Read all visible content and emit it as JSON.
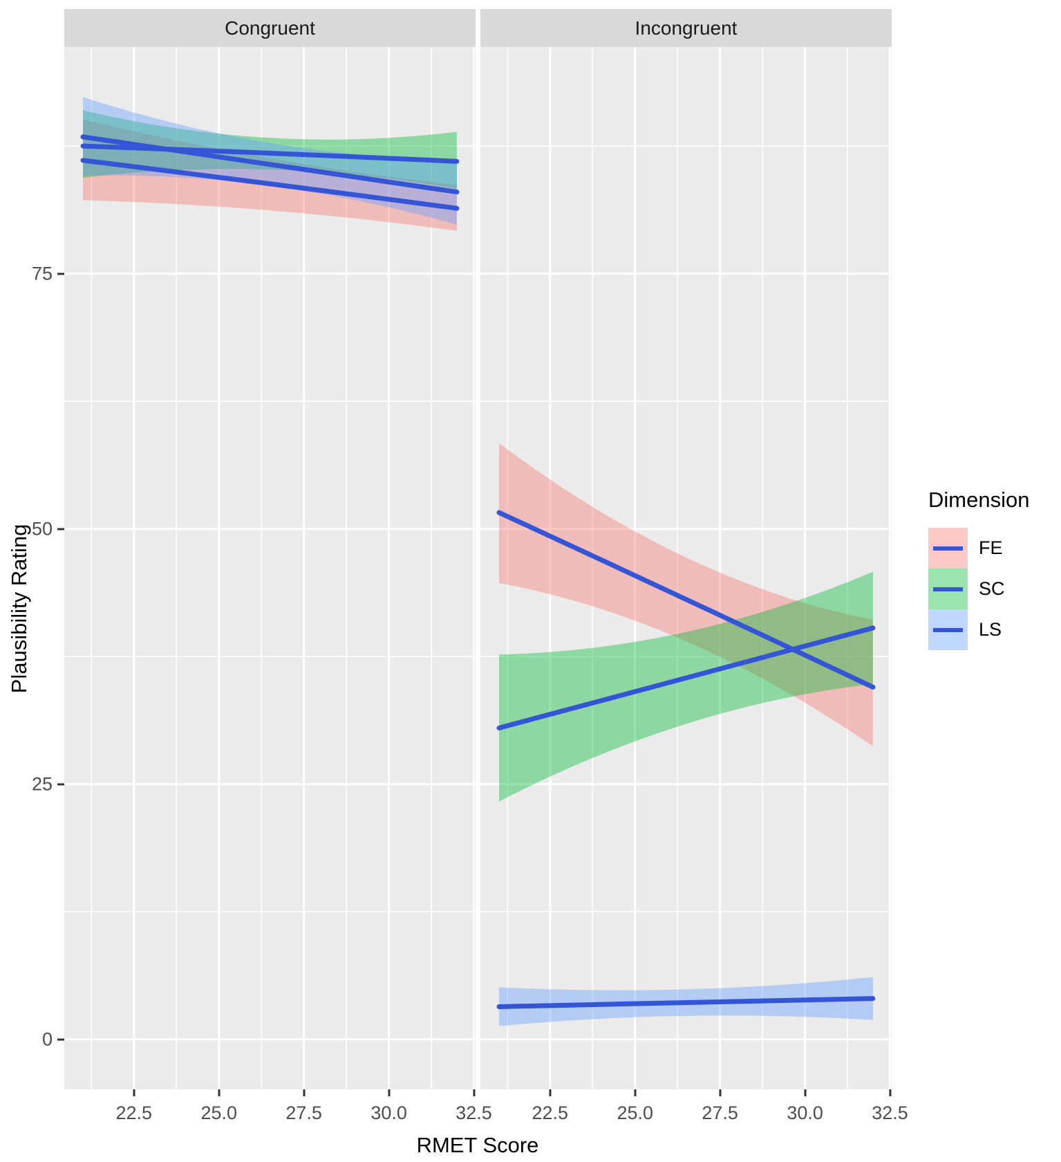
{
  "chart_data": {
    "type": "line",
    "xlabel": "RMET Score",
    "ylabel": "Plausibility Rating",
    "xlim": [
      20.45,
      32.55
    ],
    "ylim": [
      -4.9,
      97.2
    ],
    "x_major_ticks": [
      22.5,
      25.0,
      27.5,
      30.0,
      32.5
    ],
    "x_tick_labels": [
      "22.5",
      "25.0",
      "27.5",
      "30.0",
      "32.5"
    ],
    "x_minor_ticks": [
      21.25,
      23.75,
      26.25,
      28.75,
      31.25
    ],
    "y_major_ticks": [
      0,
      25,
      50,
      75
    ],
    "y_tick_labels": [
      "0",
      "25",
      "50",
      "75"
    ],
    "y_minor_ticks": [
      12.5,
      37.5,
      62.5,
      87.5
    ],
    "facets": [
      {
        "label": "Congruent",
        "series": [
          {
            "name": "FE",
            "x": [
              21,
              26.5,
              32
            ],
            "line": [
              86.1,
              83.8,
              81.4
            ],
            "upper": [
              90.1,
              86.3,
              83.7
            ],
            "lower": [
              82.2,
              81.2,
              79.2
            ]
          },
          {
            "name": "SC",
            "x": [
              21,
              26.5,
              32
            ],
            "line": [
              87.5,
              86.8,
              86.0
            ],
            "upper": [
              91.0,
              88.3,
              88.9
            ],
            "lower": [
              84.4,
              85.2,
              83.3
            ]
          },
          {
            "name": "LS",
            "x": [
              21,
              26.5,
              32
            ],
            "line": [
              88.4,
              85.7,
              83.0
            ],
            "upper": [
              92.3,
              87.8,
              86.2
            ],
            "lower": [
              84.6,
              83.6,
              79.8
            ]
          }
        ]
      },
      {
        "label": "Incongruent",
        "series": [
          {
            "name": "FE",
            "x": [
              21,
              26.5,
              32
            ],
            "line": [
              51.6,
              43.1,
              34.5
            ],
            "upper": [
              58.4,
              47.2,
              41.1
            ],
            "lower": [
              44.7,
              39.0,
              28.7
            ]
          },
          {
            "name": "SC",
            "x": [
              21,
              26.5,
              32
            ],
            "line": [
              30.5,
              35.4,
              40.3
            ],
            "upper": [
              37.7,
              39.9,
              45.8
            ],
            "lower": [
              23.3,
              30.9,
              34.8
            ]
          },
          {
            "name": "LS",
            "x": [
              21,
              26.5,
              32
            ],
            "line": [
              3.2,
              3.6,
              4.0
            ],
            "upper": [
              5.1,
              4.9,
              6.1
            ],
            "lower": [
              1.3,
              2.3,
              1.9
            ]
          }
        ]
      }
    ],
    "legend": {
      "title": "Dimension",
      "entries": [
        {
          "label": "FE",
          "fill": "rgba(248,118,109,0.4)"
        },
        {
          "label": "SC",
          "fill": "rgba(0,186,56,0.4)"
        },
        {
          "label": "LS",
          "fill": "rgba(97,156,255,0.4)"
        }
      ]
    },
    "ribbon_fills": {
      "FE": "rgba(248,118,109,0.4)",
      "SC": "rgba(0,186,56,0.4)",
      "LS": "rgba(97,156,255,0.4)"
    },
    "line_color": "#3355D6",
    "panel_bg": "#EBEBEB",
    "strip_bg": "#D9D9D9",
    "grid_color": "#FFFFFF"
  }
}
